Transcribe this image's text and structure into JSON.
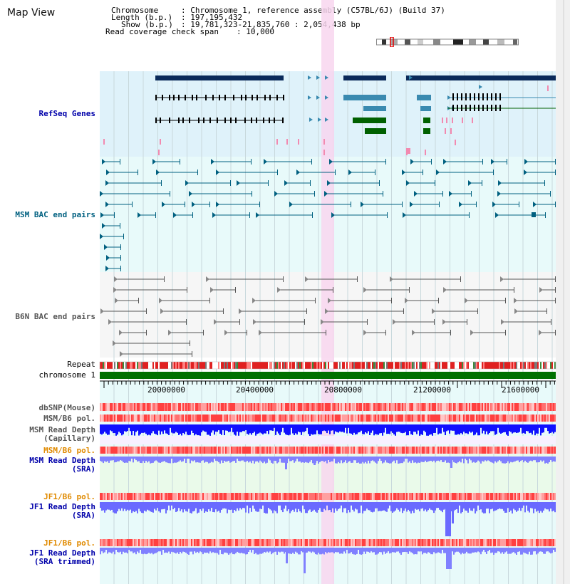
{
  "title": "Map View",
  "info": {
    "chromosome_label": "Chromosome",
    "chromosome_value": ": Chromosome 1, reference assembly (C57BL/6J) (Build 37)",
    "length_label": "Length (b.p.)",
    "length_value": ": 197,195,432",
    "show_label": "Show (b.p.)",
    "show_value": ": 19,781,323-21,835,760 : 2,054,438 bp",
    "coverage_label": "Read coverage check span",
    "coverage_value": ": 10,000"
  },
  "tracks": {
    "refseq": "RefSeq Genes",
    "msm_bac": "MSM BAC end pairs",
    "b6n_bac": "B6N BAC end pairs",
    "repeat": "Repeat",
    "chromosome": "chromosome 1",
    "dbsnp": "dbSNP(Mouse)",
    "msm_b6_pol_1": "MSM/B6 pol.",
    "msm_read_depth_cap": "MSM Read Depth\n(Capillary)",
    "msm_b6_pol_2": "MSM/B6 pol.",
    "msm_read_depth_sra": "MSM Read Depth\n(SRA)",
    "jf1_b6_pol_1": "JF1/B6 pol.",
    "jf1_read_depth_sra": "JF1 Read Depth\n(SRA)",
    "jf1_b6_pol_2": "JF1/B6 pol.",
    "jf1_read_depth_trim": "JF1 Read Depth\n(SRA trimmed)"
  },
  "axis": {
    "ticks": [
      "20000000",
      "20400000",
      "20800000",
      "21200000",
      "21600000"
    ]
  },
  "colors": {
    "panel_blue": "#dff2fa",
    "panel_cyan": "#e8fafa",
    "highlight": "#f8d6ee",
    "gene_dark": "#0a2a5a",
    "gene_mid": "#3a8ab0",
    "gene_green": "#006000",
    "msm_color": "#006080",
    "b6n_color": "#555555",
    "chrom_green": "#007000",
    "depth_blue": "#0000ff",
    "depth_light": "#7a7aff",
    "label_blue": "#0000aa",
    "label_teal": "#006080",
    "label_orange": "#e08a00",
    "label_gray": "#555555"
  }
}
